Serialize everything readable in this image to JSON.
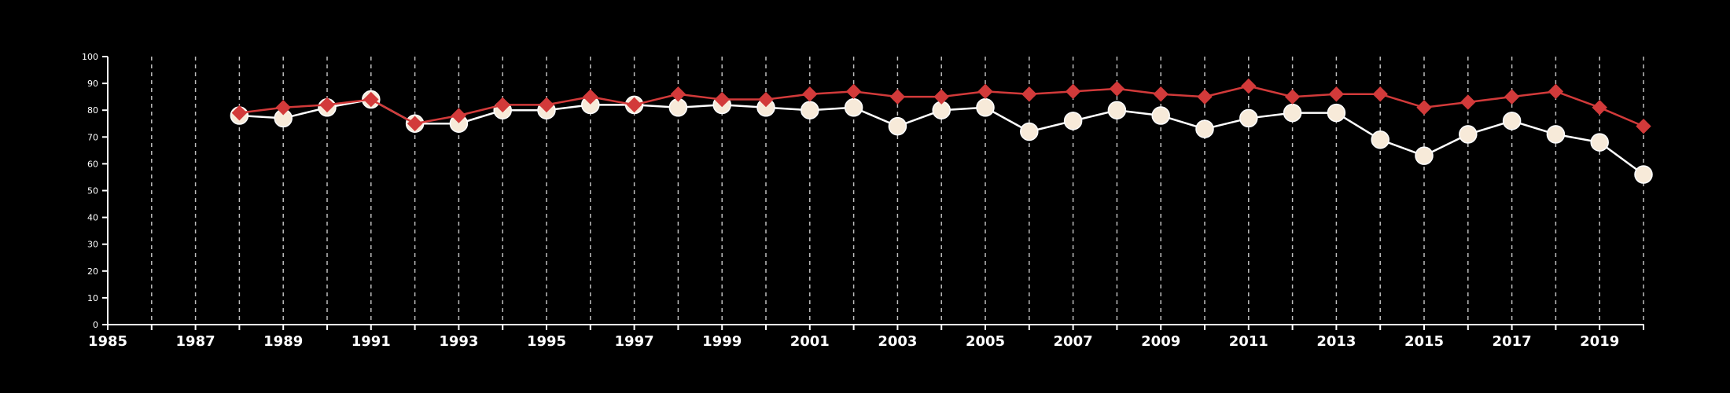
{
  "chart_data": {
    "type": "line",
    "title": "",
    "xlabel": "",
    "ylabel": "",
    "xlim": [
      1985,
      2020
    ],
    "ylim": [
      0,
      100
    ],
    "y_ticks": [
      0,
      10,
      20,
      30,
      40,
      50,
      60,
      70,
      80,
      90,
      100
    ],
    "x_ticks": [
      1985,
      1987,
      1989,
      1991,
      1993,
      1995,
      1997,
      1999,
      2001,
      2003,
      2005,
      2007,
      2009,
      2011,
      2013,
      2015,
      2017,
      2019
    ],
    "grid": "vertical dashed lines at every year",
    "x": [
      1988,
      1989,
      1990,
      1991,
      1992,
      1993,
      1994,
      1995,
      1996,
      1997,
      1998,
      1999,
      2000,
      2001,
      2002,
      2003,
      2004,
      2005,
      2006,
      2007,
      2008,
      2009,
      2010,
      2011,
      2012,
      2013,
      2014,
      2015,
      2016,
      2017,
      2018,
      2019,
      2020
    ],
    "series": [
      {
        "marker": "circle",
        "line_color": "#ffffff",
        "marker_fill": "#f7ead9",
        "values": [
          78,
          77,
          81,
          84,
          75,
          75,
          80,
          80,
          82,
          82,
          81,
          82,
          81,
          80,
          81,
          74,
          80,
          81,
          72,
          76,
          80,
          78,
          73,
          77,
          79,
          79,
          69,
          63,
          71,
          76,
          71,
          68,
          56
        ]
      },
      {
        "marker": "diamond",
        "line_color": "#d23a3a",
        "marker_fill": "#d23a3a",
        "values": [
          79,
          81,
          82,
          84,
          75,
          78,
          82,
          82,
          85,
          82,
          86,
          84,
          84,
          86,
          87,
          85,
          85,
          87,
          86,
          87,
          88,
          86,
          85,
          89,
          85,
          86,
          86,
          81,
          83,
          85,
          87,
          81,
          74
        ]
      }
    ]
  },
  "colors": {
    "background": "#000000",
    "axis": "#ffffff",
    "grid": "#bdbdbd"
  }
}
